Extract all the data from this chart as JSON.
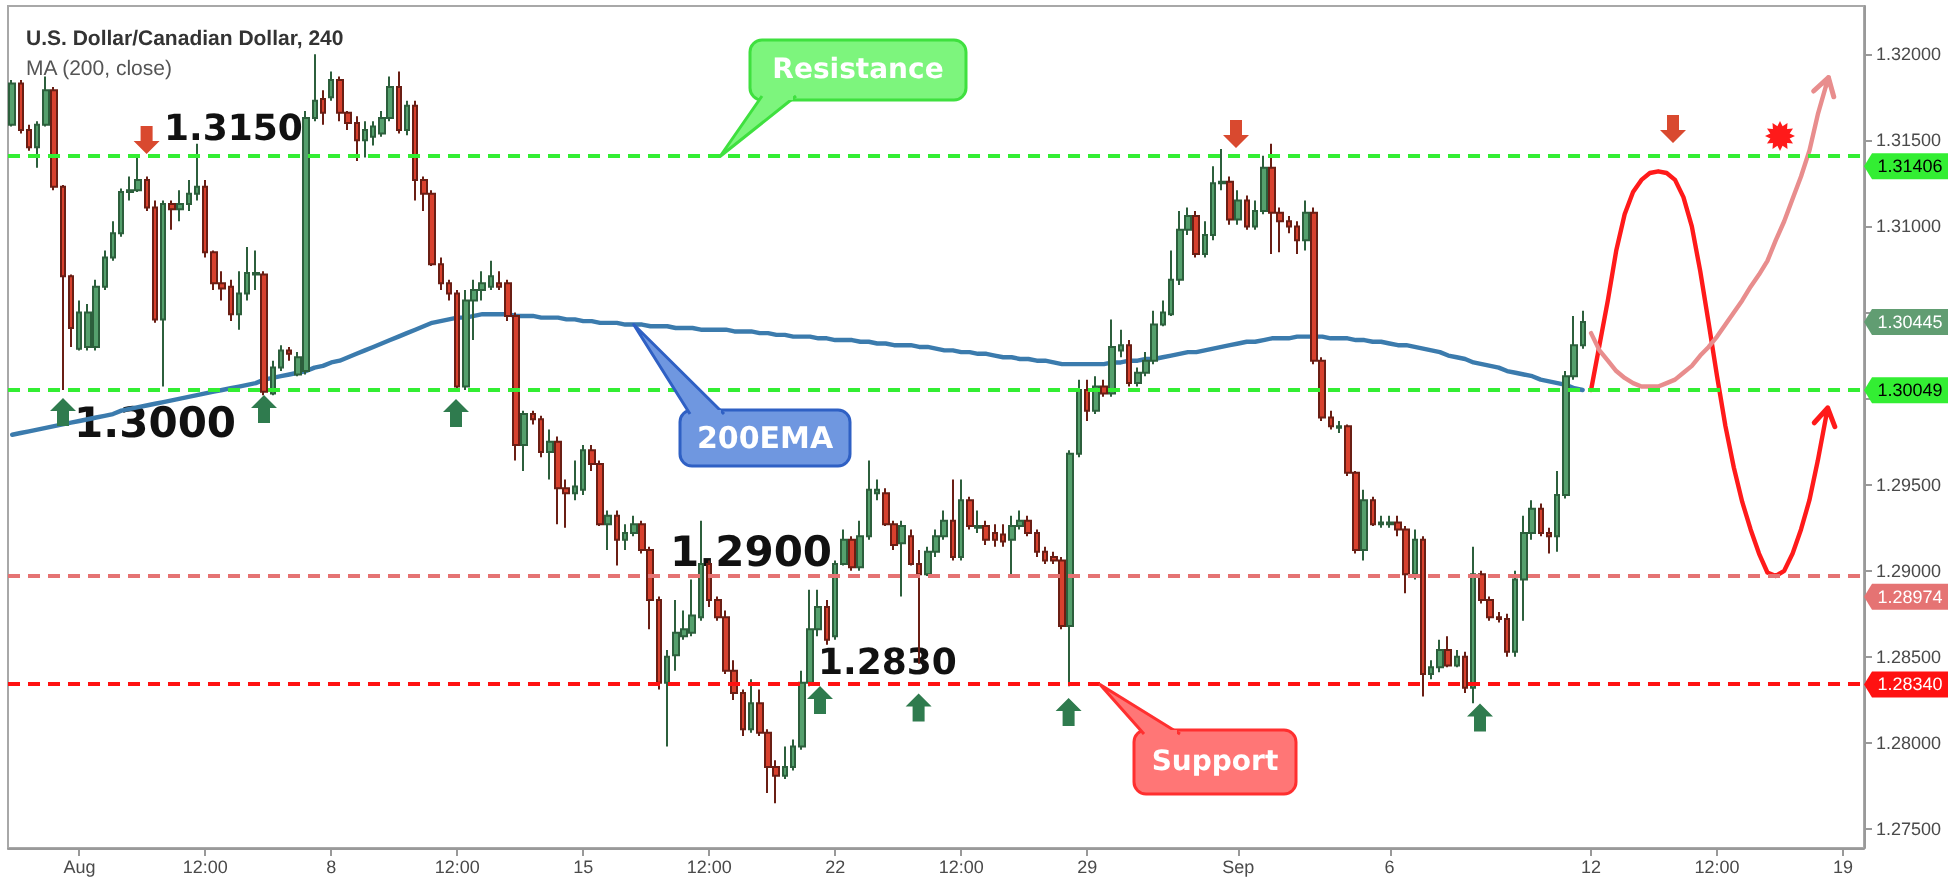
{
  "chart_data": {
    "type": "candlestick",
    "title": "U.S. Dollar/Canadian Dollar, 240",
    "subtitle": "MA (200, close)",
    "categories": [
      null,
      null,
      null,
      null,
      null,
      null,
      null,
      null,
      "Aug",
      null,
      null,
      null,
      null,
      null,
      null,
      null,
      null,
      null,
      null,
      null,
      null,
      null,
      null,
      "12:00",
      null,
      null,
      null,
      null,
      null,
      null,
      null,
      null,
      null,
      null,
      null,
      null,
      null,
      null,
      "8",
      null,
      null,
      null,
      null,
      null,
      null,
      null,
      null,
      null,
      null,
      null,
      null,
      null,
      null,
      "12:00",
      null,
      null,
      null,
      null,
      null,
      null,
      null,
      null,
      null,
      null,
      null,
      null,
      null,
      null,
      "15",
      null,
      null,
      null,
      null,
      null,
      null,
      null,
      null,
      null,
      null,
      null,
      null,
      null,
      null,
      "12:00",
      null,
      null,
      null,
      null,
      null,
      null,
      null,
      null,
      null,
      null,
      null,
      null,
      null,
      null,
      "22",
      null,
      null,
      null,
      null,
      null,
      null,
      null,
      null,
      null,
      null,
      null,
      null,
      null,
      null,
      "12:00",
      null,
      null,
      null,
      null,
      null,
      null,
      null,
      null,
      null,
      null,
      null,
      null,
      null,
      null,
      "29",
      null,
      null,
      null,
      null,
      null,
      null,
      null,
      null,
      null,
      null,
      null,
      null,
      null,
      null,
      null,
      null,
      null,
      "Sep",
      null,
      null,
      null,
      null,
      null,
      null,
      null,
      null,
      null,
      null,
      null,
      null,
      null,
      null,
      null,
      null,
      null,
      "6",
      null,
      null,
      null,
      null,
      null,
      null,
      null,
      null,
      null,
      null,
      null,
      null,
      null,
      null,
      null,
      null,
      null,
      null,
      null,
      null,
      null,
      null,
      null,
      "12",
      null,
      null,
      null,
      null,
      null,
      null,
      null,
      null,
      null,
      null,
      null,
      null,
      null,
      null,
      "12:00",
      null,
      null,
      null,
      null,
      null,
      null,
      null,
      null,
      null,
      null,
      null,
      null,
      null,
      null,
      "19",
      null,
      null
    ],
    "series": [
      {
        "ohlc": [
          [
            1.3159,
            1.3185,
            1.3158,
            1.3183
          ],
          [
            1.3183,
            1.3185,
            1.3154,
            1.3156
          ],
          [
            1.3156,
            1.3159,
            1.3144,
            1.3146
          ],
          [
            1.3146,
            1.3161,
            1.3134,
            1.3159
          ],
          [
            1.3159,
            1.3187,
            1.3158,
            1.3179
          ],
          [
            1.3179,
            1.3181,
            1.3121,
            1.3123
          ],
          [
            1.3123,
            1.3124,
            1.3005,
            1.3071
          ],
          [
            1.3071,
            1.3072,
            1.303,
            1.3041
          ],
          [
            1.3029,
            1.3057,
            1.3028,
            1.305
          ],
          [
            1.303,
            1.3055,
            1.3028,
            1.305
          ],
          [
            1.303,
            1.3069,
            1.3028,
            1.3065
          ],
          [
            1.3065,
            1.3086,
            1.3063,
            1.3082
          ],
          [
            1.3082,
            1.3103,
            1.308,
            1.3096
          ],
          [
            1.3096,
            1.3122,
            1.3094,
            1.312
          ],
          [
            1.312,
            1.3129,
            1.3115,
            1.3121
          ],
          [
            1.3121,
            1.3142,
            1.312,
            1.3127
          ],
          [
            1.3127,
            1.3129,
            1.3109,
            1.3111
          ],
          [
            1.3111,
            1.3115,
            1.3044,
            1.3046
          ],
          [
            1.3046,
            1.3115,
            1.3007,
            1.3113
          ],
          [
            1.3113,
            1.3115,
            1.3098,
            1.311
          ],
          [
            1.311,
            1.3121,
            1.3103,
            1.3113
          ],
          [
            1.3113,
            1.3127,
            1.3109,
            1.3119
          ],
          [
            1.3119,
            1.3148,
            1.3115,
            1.3123
          ],
          [
            1.3123,
            1.3127,
            1.3082,
            1.3085
          ],
          [
            1.3085,
            1.3086,
            1.3063,
            1.3067
          ],
          [
            1.3067,
            1.3074,
            1.3057,
            1.3064
          ],
          [
            1.3065,
            1.3069,
            1.3045,
            1.3049
          ],
          [
            1.3049,
            1.3074,
            1.304,
            1.3061
          ],
          [
            1.3061,
            1.3088,
            1.3057,
            1.3073
          ],
          [
            1.3072,
            1.3086,
            1.3063,
            1.3073
          ],
          [
            1.3072,
            1.3074,
            1.3002,
            1.3004
          ],
          [
            1.3003,
            1.3022,
            1.3002,
            1.3018
          ],
          [
            1.3018,
            1.3031,
            1.3016,
            1.3028
          ],
          [
            1.3028,
            1.303,
            1.3022,
            1.3026
          ],
          [
            1.3014,
            1.3027,
            1.3013,
            1.3024
          ],
          [
            1.3016,
            1.3167,
            1.3014,
            1.3163
          ],
          [
            1.3163,
            1.32,
            1.3161,
            1.3173
          ],
          [
            1.3174,
            1.3179,
            1.3159,
            1.3166
          ],
          [
            1.3175,
            1.319,
            1.3173,
            1.3185
          ],
          [
            1.3185,
            1.3187,
            1.3161,
            1.3166
          ],
          [
            1.3166,
            1.3167,
            1.3156,
            1.316
          ],
          [
            1.316,
            1.3164,
            1.3138,
            1.315
          ],
          [
            1.315,
            1.3161,
            1.314,
            1.3156
          ],
          [
            1.3152,
            1.3161,
            1.3147,
            1.3158
          ],
          [
            1.3154,
            1.3167,
            1.3152,
            1.3163
          ],
          [
            1.3163,
            1.3187,
            1.3161,
            1.3181
          ],
          [
            1.3181,
            1.319,
            1.3154,
            1.3156
          ],
          [
            1.3156,
            1.3173,
            1.3153,
            1.317
          ],
          [
            1.317,
            1.3173,
            1.3115,
            1.3127
          ],
          [
            1.3127,
            1.3129,
            1.3109,
            1.3119
          ],
          [
            1.3119,
            1.3121,
            1.3077,
            1.3078
          ],
          [
            1.3078,
            1.3082,
            1.3063,
            1.3067
          ],
          [
            1.3067,
            1.3069,
            1.3057,
            1.3061
          ],
          [
            1.3061,
            1.3063,
            1.3005,
            1.3007
          ],
          [
            1.3007,
            1.3063,
            1.3005,
            1.3057
          ],
          [
            1.3057,
            1.3069,
            1.3034,
            1.3063
          ],
          [
            1.3063,
            1.3074,
            1.3057,
            1.3067
          ],
          [
            1.3065,
            1.308,
            1.3063,
            1.3071
          ],
          [
            1.3067,
            1.3074,
            1.3063,
            1.3065
          ],
          [
            1.3067,
            1.3069,
            1.3045,
            1.3048
          ],
          [
            1.3048,
            1.305,
            1.2964,
            1.2973
          ],
          [
            1.2973,
            1.2993,
            1.2958,
            1.2991
          ],
          [
            1.2991,
            1.2993,
            1.2985,
            1.2988
          ],
          [
            1.2988,
            1.299,
            1.2966,
            1.2969
          ],
          [
            1.2969,
            1.2982,
            1.2953,
            1.2975
          ],
          [
            1.2975,
            1.2978,
            1.2927,
            1.2948
          ],
          [
            1.2948,
            1.2953,
            1.2925,
            1.2945
          ],
          [
            1.2945,
            1.2964,
            1.2941,
            1.2949
          ],
          [
            1.2947,
            1.2973,
            1.2944,
            1.297
          ],
          [
            1.297,
            1.2973,
            1.2958,
            1.2962
          ],
          [
            1.2962,
            1.2964,
            1.2926,
            1.2927
          ],
          [
            1.2927,
            1.2935,
            1.2912,
            1.2932
          ],
          [
            1.2932,
            1.2935,
            1.2903,
            1.2918
          ],
          [
            1.2918,
            1.2927,
            1.2912,
            1.2922
          ],
          [
            1.2922,
            1.2932,
            1.292,
            1.2927
          ],
          [
            1.2927,
            1.2929,
            1.291,
            1.2912
          ],
          [
            1.2912,
            1.2914,
            1.2866,
            1.2883
          ],
          [
            1.2883,
            1.2885,
            1.2831,
            1.2835
          ],
          [
            1.2835,
            1.2854,
            1.2798,
            1.285
          ],
          [
            1.2851,
            1.2883,
            1.2842,
            1.2864
          ],
          [
            1.2862,
            1.2877,
            1.286,
            1.2866
          ],
          [
            1.2864,
            1.2895,
            1.2862,
            1.2874
          ],
          [
            1.2873,
            1.2929,
            1.2871,
            1.2904
          ],
          [
            1.2904,
            1.2906,
            1.2879,
            1.2883
          ],
          [
            1.2883,
            1.2885,
            1.2871,
            1.2873
          ],
          [
            1.2873,
            1.2877,
            1.284,
            1.2842
          ],
          [
            1.2842,
            1.2848,
            1.2825,
            1.2829
          ],
          [
            1.2829,
            1.2831,
            1.2804,
            1.2808
          ],
          [
            1.2808,
            1.2837,
            1.2806,
            1.2823
          ],
          [
            1.2823,
            1.2831,
            1.2804,
            1.2806
          ],
          [
            1.2806,
            1.2808,
            1.2771,
            1.2786
          ],
          [
            1.2786,
            1.279,
            1.2765,
            1.2781
          ],
          [
            1.2781,
            1.2798,
            1.2779,
            1.2786
          ],
          [
            1.2786,
            1.2802,
            1.2784,
            1.2798
          ],
          [
            1.2798,
            1.2842,
            1.2796,
            1.2835
          ],
          [
            1.2835,
            1.2889,
            1.2833,
            1.2866
          ],
          [
            1.2866,
            1.2889,
            1.2862,
            1.2879
          ],
          [
            1.2879,
            1.2883,
            1.2857,
            1.286
          ],
          [
            1.2862,
            1.2906,
            1.286,
            1.2904
          ],
          [
            1.2904,
            1.2924,
            1.2903,
            1.2918
          ],
          [
            1.2918,
            1.292,
            1.29,
            1.2902
          ],
          [
            1.2902,
            1.2929,
            1.29,
            1.292
          ],
          [
            1.292,
            1.2964,
            1.2918,
            1.2947
          ],
          [
            1.2945,
            1.2953,
            1.2941,
            1.2947
          ],
          [
            1.2945,
            1.2948,
            1.2926,
            1.2927
          ],
          [
            1.2927,
            1.2929,
            1.2912,
            1.2915
          ],
          [
            1.2916,
            1.2929,
            1.2885,
            1.2926
          ],
          [
            1.292,
            1.2924,
            1.2903,
            1.2904
          ],
          [
            1.2904,
            1.2912,
            1.2846,
            1.2898
          ],
          [
            1.2898,
            1.2914,
            1.2897,
            1.2911
          ],
          [
            1.2911,
            1.2924,
            1.2908,
            1.292
          ],
          [
            1.292,
            1.2935,
            1.2918,
            1.2929
          ],
          [
            1.2929,
            1.2953,
            1.2906,
            1.2908
          ],
          [
            1.2908,
            1.2953,
            1.2906,
            1.2941
          ],
          [
            1.2941,
            1.2943,
            1.2924,
            1.2926
          ],
          [
            1.2925,
            1.2935,
            1.2922,
            1.2926
          ],
          [
            1.2926,
            1.2929,
            1.2915,
            1.2918
          ],
          [
            1.2922,
            1.2927,
            1.2914,
            1.2918
          ],
          [
            1.2921,
            1.2927,
            1.2914,
            1.2917
          ],
          [
            1.2918,
            1.2932,
            1.2898,
            1.2926
          ],
          [
            1.2926,
            1.2935,
            1.2924,
            1.2929
          ],
          [
            1.2929,
            1.2932,
            1.292,
            1.2922
          ],
          [
            1.2922,
            1.2924,
            1.2908,
            1.2911
          ],
          [
            1.2911,
            1.2914,
            1.2904,
            1.2906
          ],
          [
            1.2908,
            1.2911,
            1.2904,
            1.2906
          ],
          [
            1.2906,
            1.2908,
            1.2866,
            1.2868
          ],
          [
            1.2868,
            1.297,
            1.2833,
            1.2968
          ],
          [
            1.2968,
            1.3011,
            1.2966,
            1.3005
          ],
          [
            1.3005,
            1.3011,
            1.2987,
            1.2993
          ],
          [
            1.2993,
            1.3013,
            1.2991,
            1.3007
          ],
          [
            1.3007,
            1.3011,
            1.3001,
            1.3003
          ],
          [
            1.3003,
            1.3046,
            1.3001,
            1.303
          ],
          [
            1.3028,
            1.304,
            1.3024,
            1.3031
          ],
          [
            1.3031,
            1.3034,
            1.3007,
            1.3009
          ],
          [
            1.3009,
            1.3018,
            1.3007,
            1.3015
          ],
          [
            1.3015,
            1.3027,
            1.3013,
            1.3022
          ],
          [
            1.3022,
            1.3051,
            1.302,
            1.3043
          ],
          [
            1.3043,
            1.3057,
            1.3042,
            1.305
          ],
          [
            1.3049,
            1.3086,
            1.3048,
            1.3069
          ],
          [
            1.3069,
            1.3109,
            1.3066,
            1.3098
          ],
          [
            1.3098,
            1.3111,
            1.3095,
            1.3106
          ],
          [
            1.3106,
            1.3109,
            1.3082,
            1.3084
          ],
          [
            1.3084,
            1.3103,
            1.3082,
            1.3095
          ],
          [
            1.3095,
            1.3135,
            1.3092,
            1.3125
          ],
          [
            1.3125,
            1.3145,
            1.3121,
            1.3126
          ],
          [
            1.3126,
            1.3129,
            1.3101,
            1.3104
          ],
          [
            1.3104,
            1.3121,
            1.3101,
            1.3115
          ],
          [
            1.3115,
            1.3118,
            1.3098,
            1.31
          ],
          [
            1.31,
            1.3115,
            1.3098,
            1.3109
          ],
          [
            1.3109,
            1.3141,
            1.3107,
            1.3134
          ],
          [
            1.3134,
            1.3148,
            1.3084,
            1.3108
          ],
          [
            1.3108,
            1.3111,
            1.3085,
            1.3103
          ],
          [
            1.3103,
            1.3106,
            1.3096,
            1.31
          ],
          [
            1.31,
            1.3103,
            1.3084,
            1.3092
          ],
          [
            1.3092,
            1.3115,
            1.3086,
            1.3108
          ],
          [
            1.3108,
            1.3111,
            1.302,
            1.3022
          ],
          [
            1.3022,
            1.3024,
            1.2987,
            1.2989
          ],
          [
            1.2989,
            1.2993,
            1.2982,
            1.2984
          ],
          [
            1.2983,
            1.2987,
            1.298,
            1.2984
          ],
          [
            1.2984,
            1.2985,
            1.2955,
            1.2957
          ],
          [
            1.2957,
            1.2958,
            1.291,
            1.2912
          ],
          [
            1.2912,
            1.2947,
            1.2906,
            1.2941
          ],
          [
            1.2941,
            1.2943,
            1.2926,
            1.2927
          ],
          [
            1.2927,
            1.2932,
            1.2925,
            1.2928
          ],
          [
            1.2927,
            1.2932,
            1.2925,
            1.2928
          ],
          [
            1.2928,
            1.2932,
            1.292,
            1.2924
          ],
          [
            1.2924,
            1.2926,
            1.2887,
            1.2898
          ],
          [
            1.2898,
            1.2924,
            1.2895,
            1.2918
          ],
          [
            1.2918,
            1.292,
            1.2827,
            1.284
          ],
          [
            1.284,
            1.2848,
            1.2837,
            1.2844
          ],
          [
            1.2844,
            1.286,
            1.2841,
            1.2854
          ],
          [
            1.2854,
            1.2862,
            1.2844,
            1.2845
          ],
          [
            1.2845,
            1.2854,
            1.2844,
            1.285
          ],
          [
            1.285,
            1.2853,
            1.2829,
            1.2832
          ],
          [
            1.2832,
            1.2914,
            1.2823,
            1.2898
          ],
          [
            1.2898,
            1.29,
            1.2881,
            1.2883
          ],
          [
            1.2883,
            1.2885,
            1.2871,
            1.2873
          ],
          [
            1.2873,
            1.2876,
            1.287,
            1.2872
          ],
          [
            1.2872,
            1.2875,
            1.285,
            1.2853
          ],
          [
            1.2853,
            1.29,
            1.285,
            1.2895
          ],
          [
            1.2895,
            1.2932,
            1.2871,
            1.2922
          ],
          [
            1.2922,
            1.2941,
            1.2918,
            1.2936
          ],
          [
            1.2936,
            1.2939,
            1.292,
            1.2922
          ],
          [
            1.2922,
            1.2925,
            1.291,
            1.292
          ],
          [
            1.292,
            1.2958,
            1.2911,
            1.2944
          ],
          [
            1.2944,
            1.3016,
            1.2942,
            1.3013
          ],
          [
            1.3013,
            1.3048,
            1.3011,
            1.3031
          ],
          [
            1.3031,
            1.3051,
            1.3029,
            1.30445
          ],
          null,
          null,
          null,
          null,
          null,
          null,
          null,
          null,
          null,
          null,
          null,
          null,
          null,
          null,
          null,
          null,
          null,
          null,
          null,
          null,
          null,
          null,
          null,
          null,
          null,
          null,
          null,
          null,
          null,
          null,
          null,
          null,
          null
        ]
      },
      {
        "type": "line",
        "color": "#3b7bad",
        "values": [
          1.2979,
          1.298,
          1.2981,
          1.2982,
          1.2983,
          1.2984,
          1.2985,
          1.2986,
          1.2987,
          1.2988,
          1.2989,
          1.299,
          1.2991,
          1.2993,
          1.2994,
          1.2995,
          1.2996,
          1.2997,
          1.2998,
          1.2999,
          1.3,
          1.3001,
          1.3002,
          1.3003,
          1.3004,
          1.3005,
          1.3006,
          1.3007,
          1.3008,
          1.3009,
          1.3011,
          1.3012,
          1.3013,
          1.3014,
          1.3015,
          1.3016,
          1.3018,
          1.3019,
          1.3021,
          1.3022,
          1.3024,
          1.3026,
          1.3028,
          1.303,
          1.3032,
          1.3034,
          1.3036,
          1.3038,
          1.304,
          1.3042,
          1.3044,
          1.3045,
          1.3046,
          1.3047,
          1.3047,
          1.3048,
          1.3049,
          1.3049,
          1.3049,
          1.3049,
          1.3048,
          1.3048,
          1.3048,
          1.3047,
          1.3047,
          1.3047,
          1.3046,
          1.3046,
          1.3045,
          1.3045,
          1.3044,
          1.3044,
          1.3044,
          1.3043,
          1.3043,
          1.3043,
          1.3042,
          1.3042,
          1.3042,
          1.3041,
          1.3041,
          1.3041,
          1.304,
          1.304,
          1.304,
          1.304,
          1.3039,
          1.3039,
          1.3039,
          1.3038,
          1.3038,
          1.3037,
          1.3037,
          1.3036,
          1.3036,
          1.3036,
          1.3035,
          1.3035,
          1.3034,
          1.3034,
          1.3034,
          1.3033,
          1.3033,
          1.3032,
          1.3032,
          1.3031,
          1.3031,
          1.3031,
          1.303,
          1.303,
          1.3029,
          1.3028,
          1.3028,
          1.3027,
          1.3027,
          1.3026,
          1.3026,
          1.3025,
          1.3024,
          1.3024,
          1.3023,
          1.3023,
          1.3022,
          1.3022,
          1.3021,
          1.302,
          1.302,
          1.302,
          1.302,
          1.302,
          1.302,
          1.3021,
          1.3021,
          1.3022,
          1.3022,
          1.3023,
          1.3023,
          1.3024,
          1.3025,
          1.3026,
          1.3027,
          1.3027,
          1.3028,
          1.3029,
          1.303,
          1.3031,
          1.3032,
          1.3033,
          1.3033,
          1.3034,
          1.3035,
          1.3035,
          1.3035,
          1.3036,
          1.3036,
          1.3036,
          1.3036,
          1.3035,
          1.3035,
          1.3035,
          1.3034,
          1.3034,
          1.3033,
          1.3033,
          1.3032,
          1.3031,
          1.3031,
          1.303,
          1.3029,
          1.3028,
          1.3027,
          1.3025,
          1.3024,
          1.3023,
          1.3021,
          1.302,
          1.3019,
          1.3018,
          1.3016,
          1.3015,
          1.3014,
          1.3013,
          1.3011,
          1.301,
          1.3009,
          1.3008,
          1.3006,
          1.3005,
          null,
          null,
          null,
          null,
          null,
          null,
          null,
          null,
          null,
          null,
          null,
          null,
          null,
          null,
          null,
          null,
          null,
          null,
          null,
          null,
          null,
          null,
          null,
          null,
          null,
          null,
          null,
          null,
          null,
          null,
          null,
          null,
          null
        ]
      },
      {
        "type": "line",
        "color": "#ff1a1a",
        "values": [
          null,
          null,
          null,
          null,
          null,
          null,
          null,
          null,
          null,
          null,
          null,
          null,
          null,
          null,
          null,
          null,
          null,
          null,
          null,
          null,
          null,
          null,
          null,
          null,
          null,
          null,
          null,
          null,
          null,
          null,
          null,
          null,
          null,
          null,
          null,
          null,
          null,
          null,
          null,
          null,
          null,
          null,
          null,
          null,
          null,
          null,
          null,
          null,
          null,
          null,
          null,
          null,
          null,
          null,
          null,
          null,
          null,
          null,
          null,
          null,
          null,
          null,
          null,
          null,
          null,
          null,
          null,
          null,
          null,
          null,
          null,
          null,
          null,
          null,
          null,
          null,
          null,
          null,
          null,
          null,
          null,
          null,
          null,
          null,
          null,
          null,
          null,
          null,
          null,
          null,
          null,
          null,
          null,
          null,
          null,
          null,
          null,
          null,
          null,
          null,
          null,
          null,
          null,
          null,
          null,
          null,
          null,
          null,
          null,
          null,
          null,
          null,
          null,
          null,
          null,
          null,
          null,
          null,
          null,
          null,
          null,
          null,
          null,
          null,
          null,
          null,
          null,
          null,
          null,
          null,
          null,
          null,
          null,
          null,
          null,
          null,
          null,
          null,
          null,
          null,
          null,
          null,
          null,
          null,
          null,
          null,
          null,
          null,
          null,
          null,
          null,
          null,
          null,
          null,
          null,
          null,
          null,
          null,
          null,
          null,
          null,
          null,
          null,
          null,
          null,
          null,
          null,
          null,
          null,
          null,
          null,
          null,
          null,
          null,
          null,
          null,
          null,
          null,
          null,
          null,
          null,
          null,
          null,
          null,
          null,
          null,
          null,
          null,
          1.3005,
          1.3031,
          1.3057,
          1.3086,
          1.3107,
          1.312,
          1.3127,
          1.3131,
          1.3132,
          1.3131,
          1.3127,
          1.3117,
          1.31,
          1.3074,
          1.3044,
          1.3013,
          1.2984,
          1.296,
          1.294,
          1.2924,
          1.291,
          1.2899,
          1.2897,
          1.29,
          1.291,
          1.2924,
          1.2941,
          1.2964,
          1.299,
          null,
          null,
          null,
          null
        ]
      },
      {
        "type": "line",
        "color": "#e88d8d",
        "values": [
          null,
          null,
          null,
          null,
          null,
          null,
          null,
          null,
          null,
          null,
          null,
          null,
          null,
          null,
          null,
          null,
          null,
          null,
          null,
          null,
          null,
          null,
          null,
          null,
          null,
          null,
          null,
          null,
          null,
          null,
          null,
          null,
          null,
          null,
          null,
          null,
          null,
          null,
          null,
          null,
          null,
          null,
          null,
          null,
          null,
          null,
          null,
          null,
          null,
          null,
          null,
          null,
          null,
          null,
          null,
          null,
          null,
          null,
          null,
          null,
          null,
          null,
          null,
          null,
          null,
          null,
          null,
          null,
          null,
          null,
          null,
          null,
          null,
          null,
          null,
          null,
          null,
          null,
          null,
          null,
          null,
          null,
          null,
          null,
          null,
          null,
          null,
          null,
          null,
          null,
          null,
          null,
          null,
          null,
          null,
          null,
          null,
          null,
          null,
          null,
          null,
          null,
          null,
          null,
          null,
          null,
          null,
          null,
          null,
          null,
          null,
          null,
          null,
          null,
          null,
          null,
          null,
          null,
          null,
          null,
          null,
          null,
          null,
          null,
          null,
          null,
          null,
          null,
          null,
          null,
          null,
          null,
          null,
          null,
          null,
          null,
          null,
          null,
          null,
          null,
          null,
          null,
          null,
          null,
          null,
          null,
          null,
          null,
          null,
          null,
          null,
          null,
          null,
          null,
          null,
          null,
          null,
          null,
          null,
          null,
          null,
          null,
          null,
          null,
          null,
          null,
          null,
          null,
          null,
          null,
          null,
          null,
          null,
          null,
          null,
          null,
          null,
          null,
          null,
          null,
          null,
          null,
          null,
          null,
          null,
          null,
          null,
          null,
          1.3038,
          1.3028,
          1.3022,
          1.3016,
          1.3012,
          1.3009,
          1.3007,
          1.3007,
          1.3007,
          1.3009,
          1.3011,
          1.3015,
          1.3019,
          1.3025,
          1.303,
          1.3036,
          1.3043,
          1.305,
          1.3057,
          1.3065,
          1.3072,
          1.308,
          1.3092,
          1.3103,
          1.3116,
          1.3129,
          1.3144,
          1.3165,
          1.3182,
          null,
          null,
          null,
          null
        ]
      }
    ],
    "ylim": [
      1.2739,
      1.3228
    ],
    "yticks": [
      {
        "value": 1.275,
        "label": "1.27500"
      },
      {
        "value": 1.28,
        "label": "1.28000"
      },
      {
        "value": 1.285,
        "label": "1.28500"
      },
      {
        "value": 1.29,
        "label": "1.29000"
      },
      {
        "value": 1.295,
        "label": "1.29500"
      },
      {
        "value": 1.3,
        "label": null
      },
      {
        "value": 1.305,
        "label": null
      },
      {
        "value": 1.31,
        "label": "1.31000"
      },
      {
        "value": 1.315,
        "label": "1.31500"
      },
      {
        "value": 1.32,
        "label": "1.32000"
      }
    ],
    "ref_lines": [
      {
        "axis": "y",
        "value": 1.31406,
        "label": "1.31406",
        "color": "#33ee33",
        "line_style": "dashed"
      },
      {
        "axis": "y",
        "value": 1.30049,
        "label": "1.30049",
        "color": "#33ee33",
        "line_style": "dashed"
      },
      {
        "axis": "y",
        "value": 1.28974,
        "label": "1.28974",
        "color": "#e57373",
        "line_style": "dashed"
      },
      {
        "axis": "y",
        "value": 1.2834,
        "label": "1.28340",
        "color": "#ff1111",
        "line_style": "dashed"
      }
    ],
    "annotations": [
      "1.3150",
      "1.3000",
      "1.2900",
      "1.2830",
      "Resistance",
      "Support",
      "200EMA",
      {
        "text": "1.30445",
        "y": 1.30445
      }
    ]
  }
}
